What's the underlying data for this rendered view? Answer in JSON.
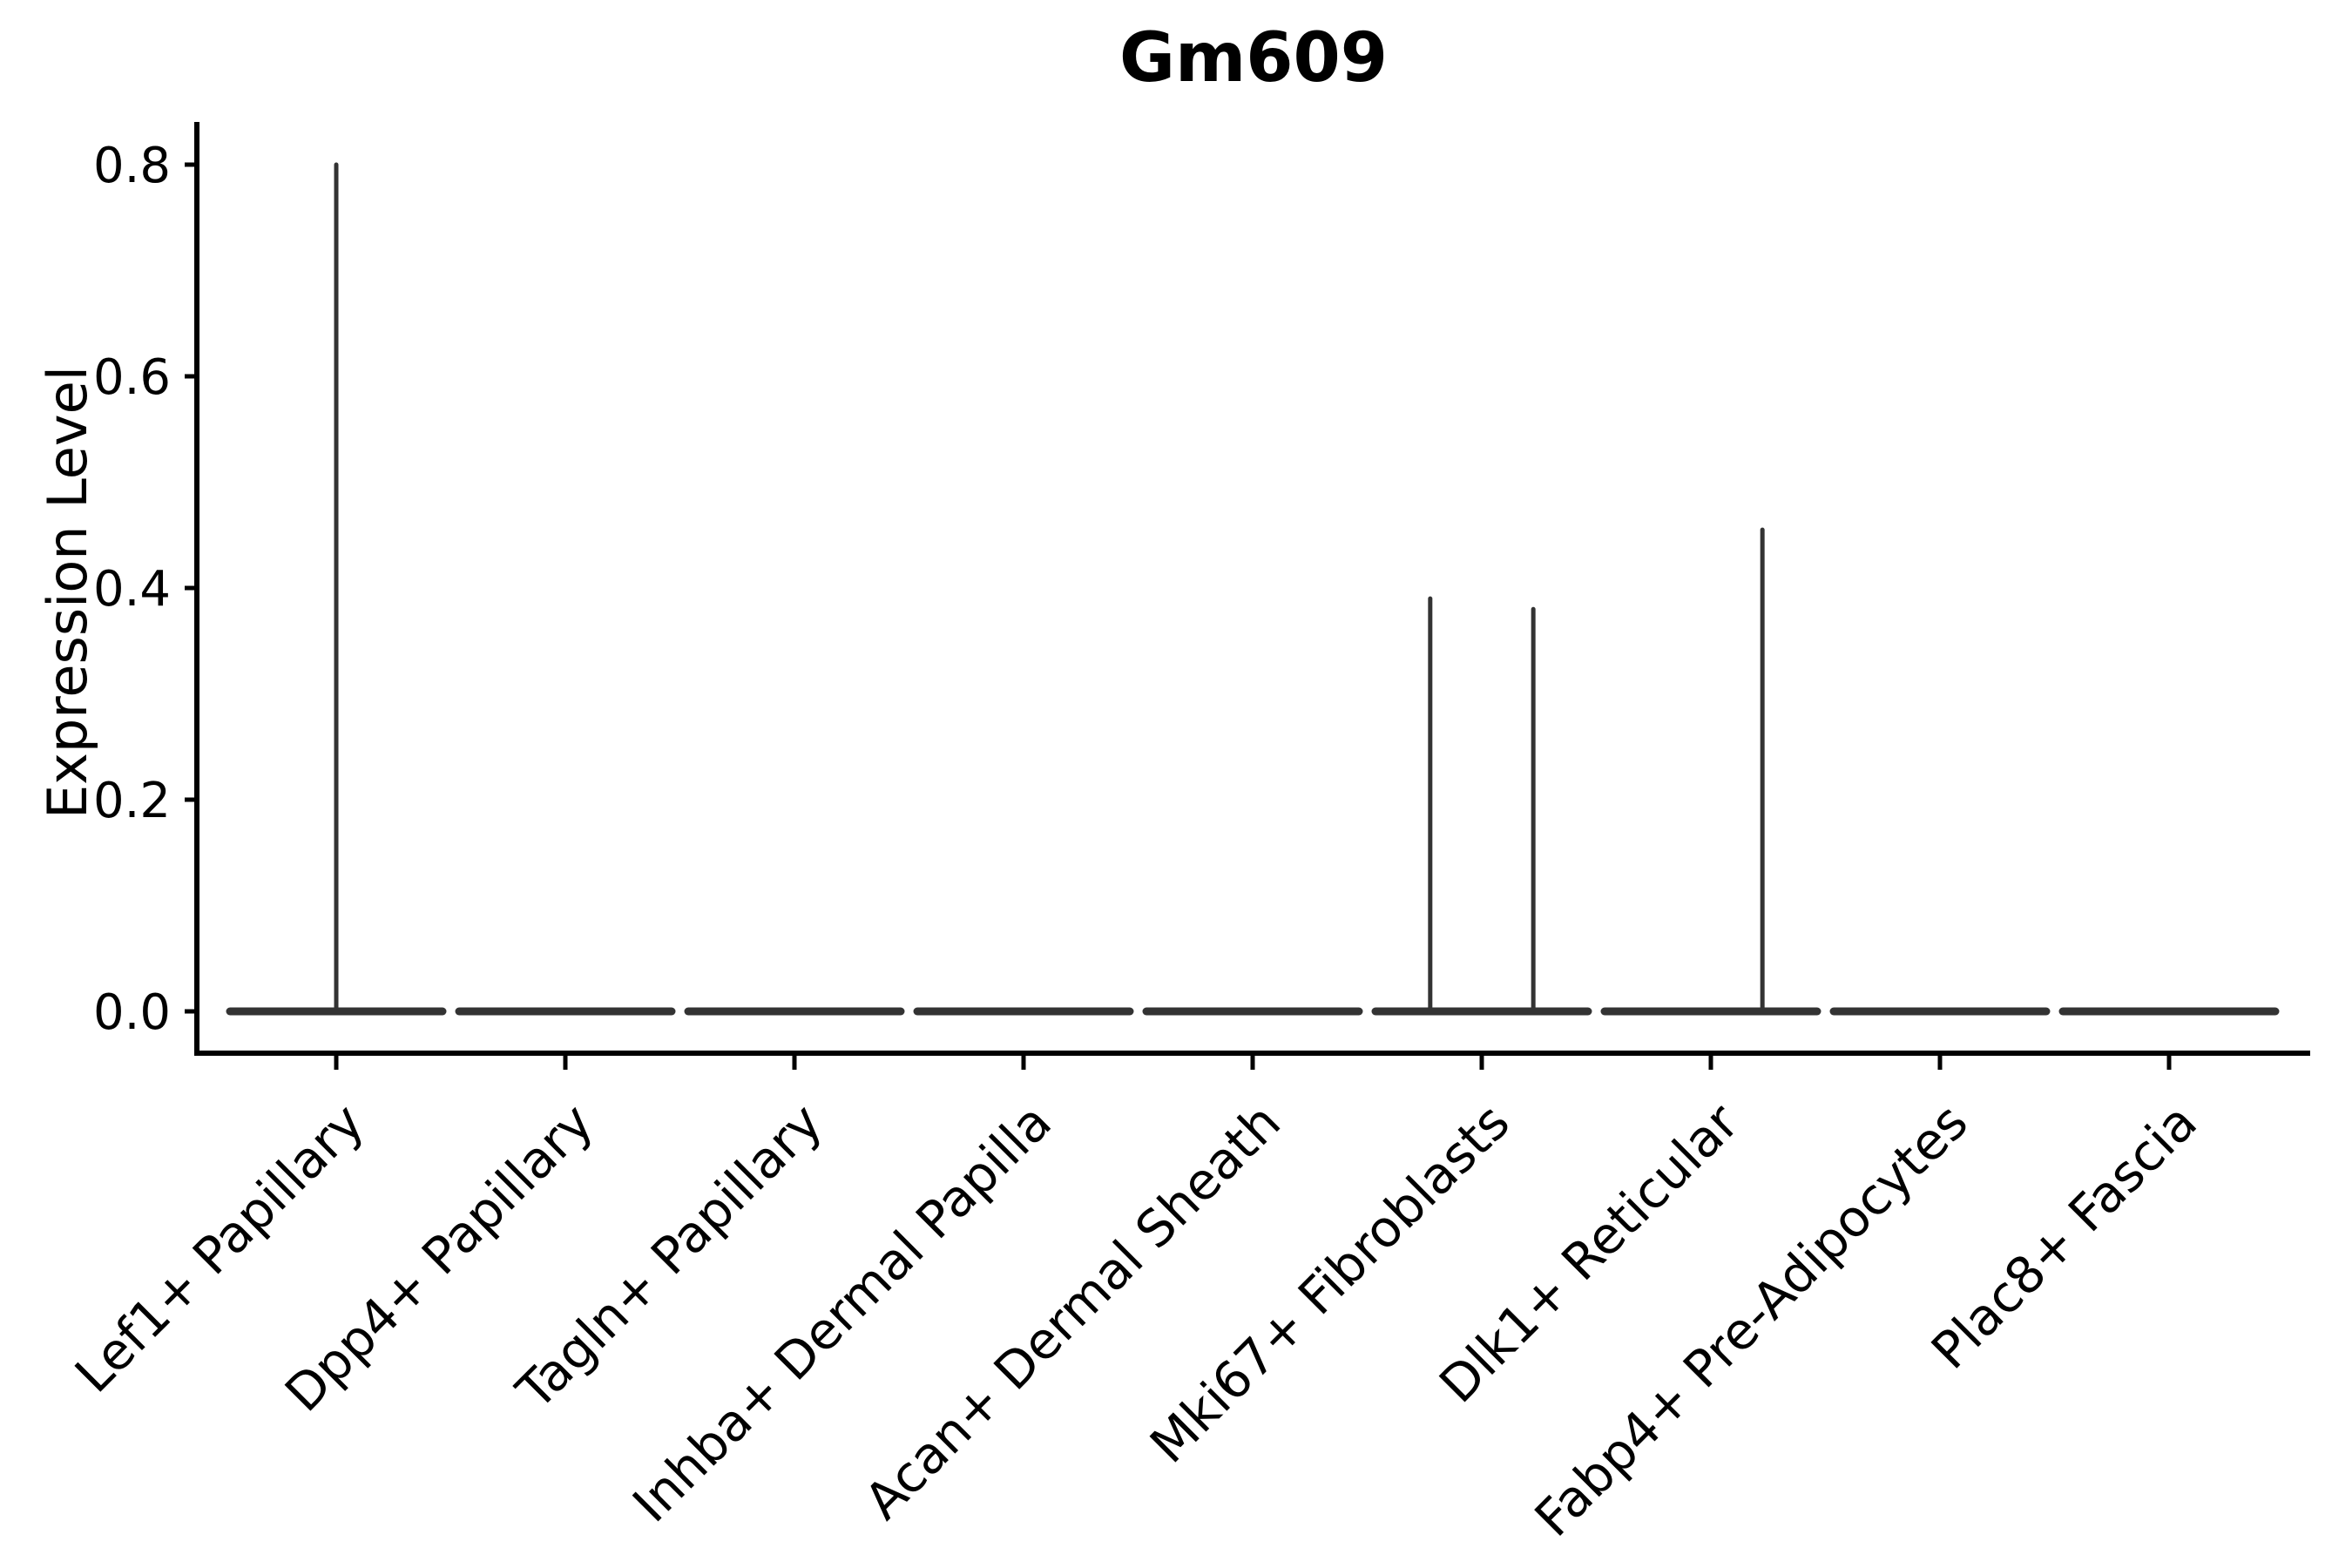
{
  "chart_data": {
    "type": "violin",
    "title": "Gm609",
    "xlabel": "",
    "ylabel": "Expression Level",
    "ylim": [
      -0.04,
      0.84
    ],
    "grid": false,
    "legend": null,
    "yticks": [
      0.0,
      0.2,
      0.4,
      0.6,
      0.8
    ],
    "ytick_labels": [
      "0.0",
      "0.2",
      "0.4",
      "0.6",
      "0.8"
    ],
    "categories": [
      "Lef1+ Papillary",
      "Dpp4+ Papillary",
      "Tagln+ Papillary",
      "Inhba+ Dermal Papilla",
      "Acan+ Dermal Sheath",
      "Mki67+ Fibroblasts",
      "Dlk1+ Reticular",
      "Fabp4+ Pre-Adipocytes",
      "Plac8+ Fascia"
    ],
    "violins": [
      {
        "category": "Lef1+ Papillary",
        "baseline_value": 0.0,
        "spikes": [
          {
            "value": 0.8,
            "offset": 0.0
          }
        ]
      },
      {
        "category": "Dpp4+ Papillary",
        "baseline_value": 0.0,
        "spikes": []
      },
      {
        "category": "Tagln+ Papillary",
        "baseline_value": 0.0,
        "spikes": []
      },
      {
        "category": "Inhba+ Dermal Papilla",
        "baseline_value": 0.0,
        "spikes": []
      },
      {
        "category": "Acan+ Dermal Sheath",
        "baseline_value": 0.0,
        "spikes": []
      },
      {
        "category": "Mki67+ Fibroblasts",
        "baseline_value": 0.0,
        "spikes": [
          {
            "value": 0.39,
            "offset": -0.225
          },
          {
            "value": 0.38,
            "offset": 0.225
          }
        ]
      },
      {
        "category": "Dlk1+ Reticular",
        "baseline_value": 0.0,
        "spikes": [
          {
            "value": 0.455,
            "offset": 0.225
          }
        ]
      },
      {
        "category": "Fabp4+ Pre-Adipocytes",
        "baseline_value": 0.0,
        "spikes": []
      },
      {
        "category": "Plac8+ Fascia",
        "baseline_value": 0.0,
        "spikes": []
      }
    ],
    "x_label_rotation_deg": 45,
    "colors": {
      "violin_line": "#333333",
      "axis": "#000000",
      "text": "#000000",
      "background": "#ffffff"
    }
  }
}
